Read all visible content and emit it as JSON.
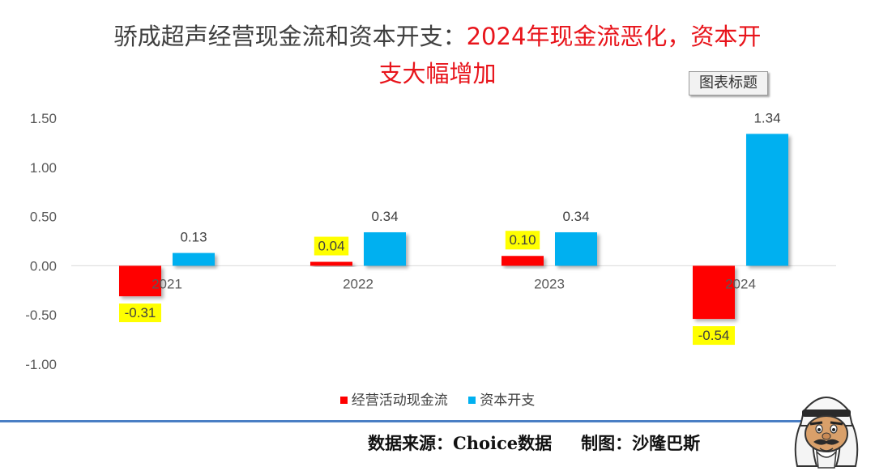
{
  "title": {
    "part1": "骄成超声经营现金流和资本开支：",
    "part2": "2024年现金流恶化，资本开",
    "line2": "支大幅增加"
  },
  "tooltip": "图表标题",
  "footer": {
    "source": "数据来源：Choice数据",
    "author": "制图：沙隆巴斯"
  },
  "colors": {
    "series1": "#ff0000",
    "series2": "#00b0f0",
    "highlight": "#ffff00",
    "footer_line": "#4a7ec4"
  },
  "mascot_icon": "mascot-icon",
  "chart_data": {
    "type": "bar",
    "categories": [
      "2021",
      "2022",
      "2023",
      "2024"
    ],
    "series": [
      {
        "name": "经营活动现金流",
        "values": [
          -0.31,
          0.04,
          0.1,
          -0.54
        ],
        "labels": [
          "-0.31",
          "0.04",
          "0.10",
          "-0.54"
        ]
      },
      {
        "name": "资本开支",
        "values": [
          0.13,
          0.34,
          0.34,
          1.34
        ],
        "labels": [
          "0.13",
          "0.34",
          "0.34",
          "1.34"
        ]
      }
    ],
    "yticks": [
      "1.50",
      "1.00",
      "0.50",
      "0.00",
      "-0.50",
      "-1.00"
    ],
    "ylim": [
      -1.0,
      1.5
    ],
    "grid": false,
    "legend": "bottom",
    "highlighted_labels": "经营活动现金流"
  }
}
